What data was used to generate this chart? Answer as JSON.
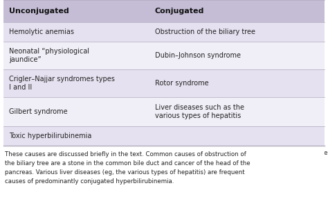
{
  "header": [
    "Unconjugated",
    "Conjugated"
  ],
  "rows": [
    [
      "Hemolytic anemias",
      "Obstruction of the biliary tree"
    ],
    [
      "Neonatal “physiological\njaundice”",
      "Dubin–Johnson syndrome"
    ],
    [
      "Crigler–Najjar syndromes types\nI and II",
      "Rotor syndrome"
    ],
    [
      "Gilbert syndrome",
      "Liver diseases such as the\nvarious types of hepatitis"
    ],
    [
      "Toxic hyperbilirubinemia",
      ""
    ]
  ],
  "footer": "These causes are discussed briefly in the text. Common causes of obstruction of the biliary tree are a stone in the common bile duct and cancer of the head of the pancreas. Various liver diseases (eg, the various types of hepatitis) are frequent causes of predominantly conjugated hyperbilirubinemia.",
  "header_bg": "#c5bdd6",
  "row_bg_odd": "#e6e1f0",
  "row_bg_even": "#f0eef7",
  "footer_bg": "#ffffff",
  "text_color": "#222222",
  "header_text_color": "#111111",
  "divider_color": "#b0aabb",
  "col_split": 0.455
}
